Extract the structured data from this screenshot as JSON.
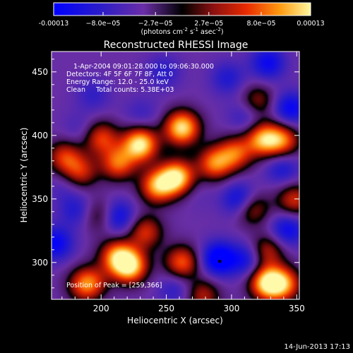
{
  "chart_data": {
    "type": "heatmap",
    "title": "Reconstructed RHESSI Image",
    "xlabel": "Heliocentric X (arcsec)",
    "ylabel": "Heliocentric Y (arcsec)",
    "xlim": [
      162,
      352
    ],
    "ylim": [
      271,
      466
    ],
    "xticks": [
      200,
      250,
      300,
      350
    ],
    "yticks": [
      300,
      350,
      400,
      450
    ],
    "colorbar": {
      "ticks": [
        {
          "value": -0.00013,
          "label": "-0.00013"
        },
        {
          "value": -8e-05,
          "label": "−8.0e−05"
        },
        {
          "value": -2.7e-05,
          "label": "−2.7e−05"
        },
        {
          "value": 2.7e-05,
          "label": "2.7e−05"
        },
        {
          "value": 8e-05,
          "label": "8.0e−05"
        },
        {
          "value": 0.00013,
          "label": "0.00013"
        }
      ],
      "range": [
        -0.00013,
        0.00013
      ],
      "unit_label_main": "(photons cm",
      "unit_exp1": "-2",
      "unit_mid": " s",
      "unit_exp2": "-1",
      "unit_tail": " asec",
      "unit_exp3": "-2",
      "unit_close": ")"
    },
    "annotations": [
      "1-Apr-2004 09:01:28.000 to 09:06:30.000",
      "Detectors: 4F 5F 6F 7F 8F, Att 0",
      "Energy Range: 12.0 - 25.0 keV",
      "Clean     Total counts: 5.38E+03"
    ],
    "peak_label": "Position of Peak = [259,366]",
    "peak": [
      259,
      366
    ],
    "marker": [
      291,
      301
    ],
    "hot_spots": [
      {
        "x": 230,
        "y": 393,
        "v": 1.0
      },
      {
        "x": 262,
        "y": 406,
        "v": 0.95
      },
      {
        "x": 258,
        "y": 367,
        "v": 0.95
      },
      {
        "x": 243,
        "y": 360,
        "v": 0.7
      },
      {
        "x": 213,
        "y": 378,
        "v": 0.55
      },
      {
        "x": 200,
        "y": 398,
        "v": 0.45
      },
      {
        "x": 184,
        "y": 371,
        "v": 0.35
      },
      {
        "x": 172,
        "y": 383,
        "v": 0.4
      },
      {
        "x": 287,
        "y": 378,
        "v": 0.6
      },
      {
        "x": 303,
        "y": 386,
        "v": 0.5
      },
      {
        "x": 324,
        "y": 397,
        "v": 0.7
      },
      {
        "x": 339,
        "y": 396,
        "v": 0.55
      },
      {
        "x": 315,
        "y": 343,
        "v": 0.45
      },
      {
        "x": 327,
        "y": 309,
        "v": 0.35
      },
      {
        "x": 348,
        "y": 349,
        "v": 0.4
      },
      {
        "x": 222,
        "y": 297,
        "v": 0.9
      },
      {
        "x": 212,
        "y": 305,
        "v": 0.6
      },
      {
        "x": 234,
        "y": 324,
        "v": 0.4
      },
      {
        "x": 262,
        "y": 300,
        "v": 0.55
      },
      {
        "x": 200,
        "y": 337,
        "v": 0.25
      },
      {
        "x": 327,
        "y": 284,
        "v": 0.9
      },
      {
        "x": 340,
        "y": 283,
        "v": 0.6
      },
      {
        "x": 192,
        "y": 286,
        "v": 0.35
      },
      {
        "x": 187,
        "y": 282,
        "v": 0.3
      },
      {
        "x": 278,
        "y": 274,
        "v": 0.3
      },
      {
        "x": 320,
        "y": 427,
        "v": 0.25
      }
    ],
    "cold_spots": [
      {
        "x": 165,
        "y": 315,
        "v": -0.75
      },
      {
        "x": 212,
        "y": 336,
        "v": -0.8
      },
      {
        "x": 181,
        "y": 341,
        "v": -0.5
      },
      {
        "x": 290,
        "y": 303,
        "v": -0.95
      },
      {
        "x": 312,
        "y": 302,
        "v": -0.65
      },
      {
        "x": 307,
        "y": 349,
        "v": -0.85
      },
      {
        "x": 343,
        "y": 326,
        "v": -0.7
      },
      {
        "x": 339,
        "y": 374,
        "v": -0.55
      },
      {
        "x": 345,
        "y": 421,
        "v": -0.75
      },
      {
        "x": 328,
        "y": 457,
        "v": -0.7
      },
      {
        "x": 297,
        "y": 445,
        "v": -0.5
      },
      {
        "x": 311,
        "y": 415,
        "v": -0.45
      },
      {
        "x": 248,
        "y": 450,
        "v": -0.45
      },
      {
        "x": 231,
        "y": 417,
        "v": -0.35
      },
      {
        "x": 194,
        "y": 432,
        "v": -0.4
      },
      {
        "x": 191,
        "y": 289,
        "v": -0.3
      },
      {
        "x": 257,
        "y": 279,
        "v": -0.45
      },
      {
        "x": 274,
        "y": 354,
        "v": -0.2
      },
      {
        "x": 183,
        "y": 405,
        "v": -0.3
      },
      {
        "x": 172,
        "y": 360,
        "v": -0.3
      }
    ]
  },
  "date_stamp": "14-Jun-2013 17:13"
}
